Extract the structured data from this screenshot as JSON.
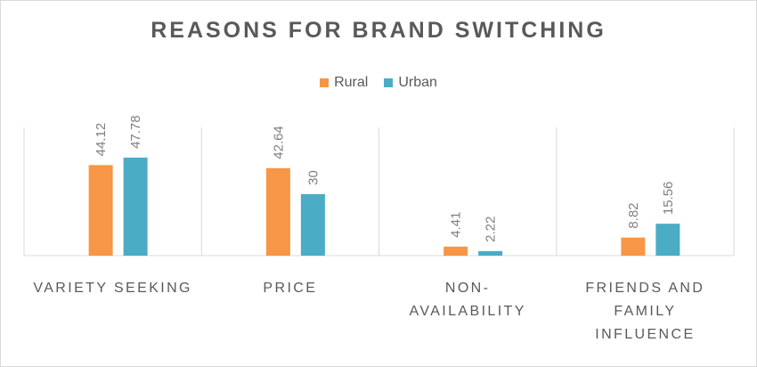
{
  "chart_data": {
    "type": "bar",
    "title": "REASONS FOR BRAND SWITCHING",
    "categories": [
      "VARIETY SEEKING",
      "PRICE",
      "NON-AVAILABILITY",
      "FRIENDS AND FAMILY INFLUENCE"
    ],
    "category_lines": [
      [
        "VARIETY SEEKING"
      ],
      [
        "PRICE"
      ],
      [
        "NON-",
        "AVAILABILITY"
      ],
      [
        "FRIENDS AND",
        "FAMILY",
        "INFLUENCE"
      ]
    ],
    "series": [
      {
        "name": "Rural",
        "values": [
          44.12,
          42.64,
          4.41,
          8.82
        ],
        "labels": [
          "44.12",
          "42.64",
          "4.41",
          "8.82"
        ],
        "color": "#f79646"
      },
      {
        "name": "Urban",
        "values": [
          47.78,
          30,
          2.22,
          15.56
        ],
        "labels": [
          "47.78",
          "30",
          "2.22",
          "15.56"
        ],
        "color": "#4bacc6"
      }
    ],
    "ylim": [
      0,
      60
    ],
    "legend": "top",
    "grid": false
  }
}
